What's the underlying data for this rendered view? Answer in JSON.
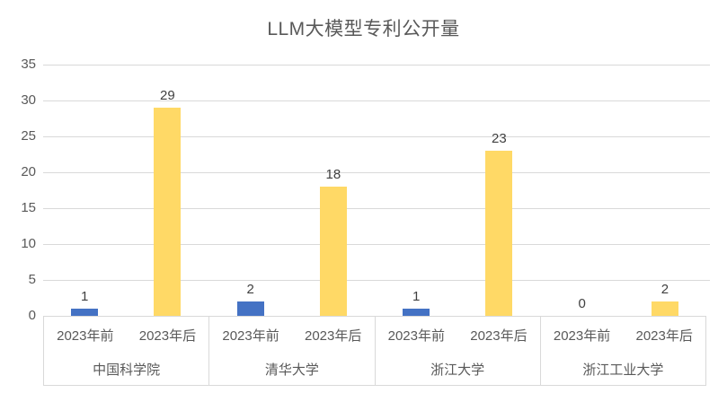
{
  "chart_data": {
    "type": "bar",
    "title": "LLM大模型专利公开量",
    "categories": [
      "中国科学院",
      "清华大学",
      "浙江大学",
      "浙江工业大学"
    ],
    "series": [
      {
        "name": "2023年前",
        "color": "#4472c4",
        "values": [
          1,
          2,
          1,
          0
        ]
      },
      {
        "name": "2023年后",
        "color": "#ffd966",
        "values": [
          29,
          18,
          23,
          2
        ]
      }
    ],
    "yticks": [
      0,
      5,
      10,
      15,
      20,
      25,
      30,
      35
    ],
    "ylim": [
      0,
      35
    ],
    "grid": true,
    "legend": "none",
    "value_labels": true,
    "colors": {
      "gridline": "#d9d9d9",
      "axis_text": "#595959",
      "value_text": "#404040",
      "title_text": "#595959"
    }
  }
}
